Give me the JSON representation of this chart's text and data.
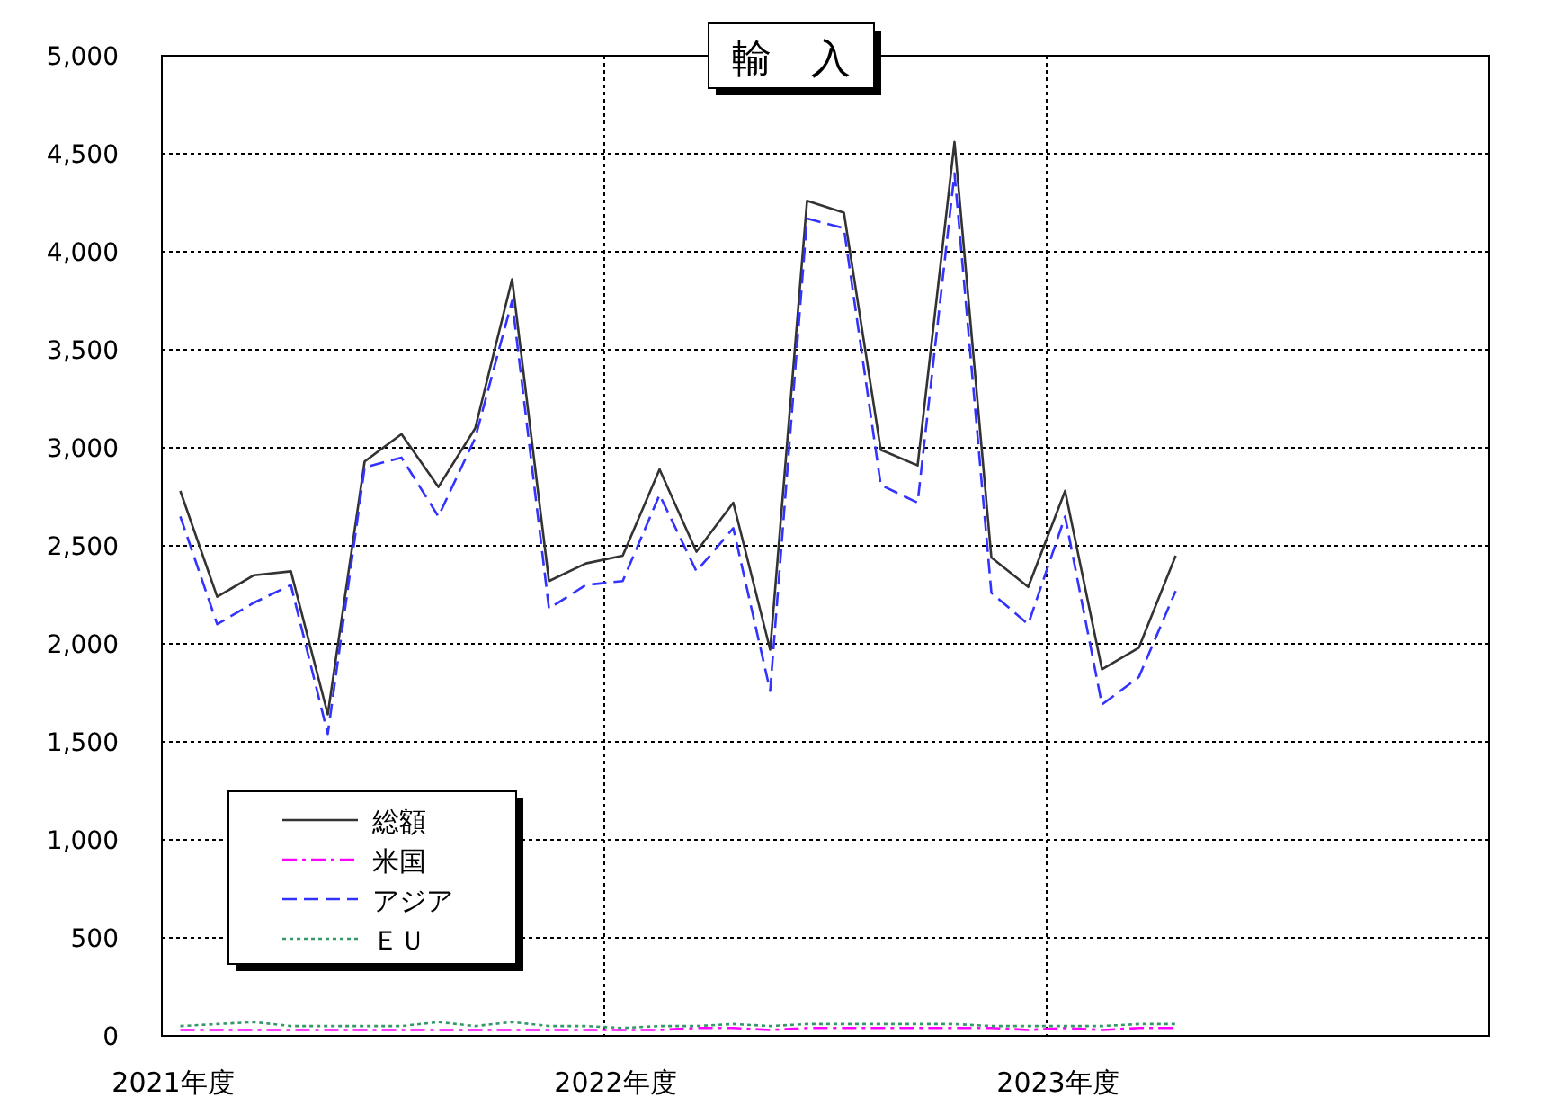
{
  "chart_data": {
    "type": "line",
    "title": "輸　入",
    "categories": [
      "2021年度",
      null,
      null,
      null,
      null,
      null,
      null,
      null,
      null,
      null,
      null,
      null,
      "2022年度",
      null,
      null,
      null,
      null,
      null,
      null,
      null,
      null,
      null,
      null,
      null,
      "2023年度",
      null,
      null,
      null,
      null,
      null,
      null,
      null,
      null,
      null,
      null,
      null
    ],
    "series": [
      {
        "name": "総額",
        "color": "#333333",
        "line_style": "solid",
        "values": [
          2780,
          2240,
          2350,
          2370,
          1640,
          2930,
          3070,
          2800,
          3100,
          3860,
          2320,
          2410,
          2450,
          2890,
          2470,
          2720,
          1970,
          4260,
          4200,
          2990,
          2910,
          4560,
          2440,
          2290,
          2780,
          1870,
          1980,
          2450,
          null,
          null,
          null,
          null,
          null,
          null,
          null,
          null
        ]
      },
      {
        "name": "米国",
        "color": "#ff00ff",
        "line_style": "dashdot",
        "values": [
          30,
          30,
          30,
          30,
          30,
          30,
          30,
          30,
          30,
          30,
          30,
          30,
          30,
          30,
          40,
          40,
          30,
          40,
          40,
          40,
          40,
          40,
          40,
          30,
          40,
          30,
          40,
          40,
          null,
          null,
          null,
          null,
          null,
          null,
          null,
          null
        ]
      },
      {
        "name": "アジア",
        "color": "#3333ff",
        "line_style": "dashed",
        "values": [
          2650,
          2100,
          2210,
          2300,
          1540,
          2900,
          2950,
          2650,
          3050,
          3750,
          2180,
          2300,
          2320,
          2760,
          2370,
          2590,
          1760,
          4170,
          4120,
          2810,
          2720,
          4400,
          2260,
          2100,
          2650,
          1690,
          1830,
          2270,
          null,
          null,
          null,
          null,
          null,
          null,
          null,
          null
        ]
      },
      {
        "name": "ＥＵ",
        "color": "#339966",
        "line_style": "dotted",
        "values": [
          50,
          60,
          70,
          50,
          50,
          50,
          50,
          70,
          50,
          70,
          50,
          50,
          40,
          50,
          50,
          60,
          50,
          60,
          60,
          60,
          60,
          60,
          50,
          50,
          50,
          50,
          60,
          60,
          null,
          null,
          null,
          null,
          null,
          null,
          null,
          null
        ]
      }
    ],
    "ylim": [
      0,
      5000
    ],
    "yticks": [
      {
        "value": 0,
        "label": "0"
      },
      {
        "value": 500,
        "label": "500"
      },
      {
        "value": 1000,
        "label": "1,000"
      },
      {
        "value": 1500,
        "label": "1,500"
      },
      {
        "value": 2000,
        "label": "2,000"
      },
      {
        "value": 2500,
        "label": "2,500"
      },
      {
        "value": 3000,
        "label": "3,000"
      },
      {
        "value": 3500,
        "label": "3,500"
      },
      {
        "value": 4000,
        "label": "4,000"
      },
      {
        "value": 4500,
        "label": "4,500"
      },
      {
        "value": 5000,
        "label": "5,000"
      }
    ],
    "grid": true,
    "legend": "bottom left"
  }
}
